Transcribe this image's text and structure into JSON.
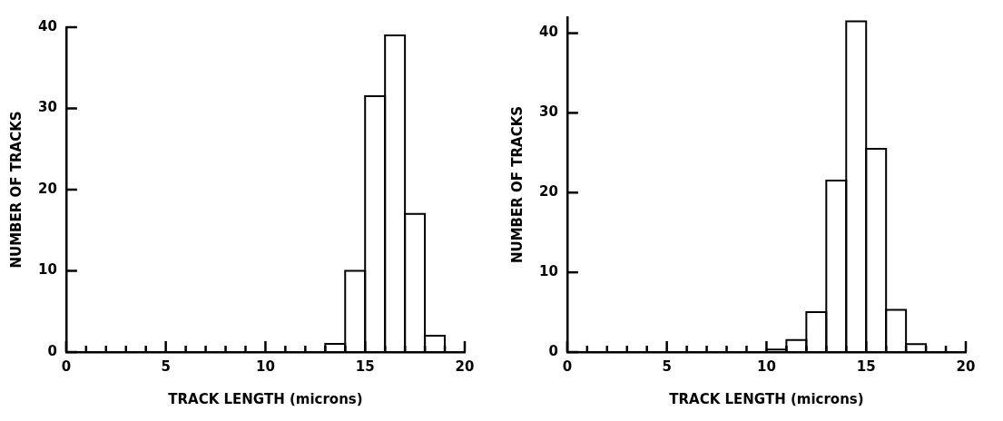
{
  "chart_data": [
    {
      "type": "histogram",
      "xlabel": "TRACK LENGTH (microns)",
      "ylabel": "NUMBER OF TRACKS",
      "bins": [
        13,
        14,
        15,
        16,
        17,
        18,
        19
      ],
      "values": [
        1,
        10,
        31.5,
        39,
        17,
        2
      ],
      "color": "#000000",
      "xlim": [
        0,
        20
      ],
      "ylim": [
        0,
        40
      ],
      "xticks": [
        0,
        {
          "value": 1,
          "label": null
        },
        {
          "value": 2,
          "label": null
        },
        {
          "value": 3,
          "label": null
        },
        {
          "value": 4,
          "label": null
        },
        5,
        {
          "value": 6,
          "label": null
        },
        {
          "value": 7,
          "label": null
        },
        {
          "value": 8,
          "label": null
        },
        {
          "value": 9,
          "label": null
        },
        10,
        {
          "value": 11,
          "label": null
        },
        {
          "value": 12,
          "label": null
        },
        {
          "value": 13,
          "label": null
        },
        {
          "value": 14,
          "label": null
        },
        15,
        {
          "value": 16,
          "label": null
        },
        {
          "value": 17,
          "label": null
        },
        {
          "value": 18,
          "label": null
        },
        {
          "value": 19,
          "label": null
        },
        20
      ],
      "yticks": [
        0,
        10,
        20,
        30,
        40
      ],
      "grid": false,
      "legend": false
    },
    {
      "type": "histogram",
      "xlabel": "TRACK LENGTH (microns)",
      "ylabel": "NUMBER OF TRACKS",
      "bins": [
        10,
        11,
        12,
        13,
        14,
        15,
        16,
        17,
        18
      ],
      "values": [
        0.3,
        1.5,
        5,
        21.5,
        41.5,
        25.5,
        5.3,
        1
      ],
      "color": "#000000",
      "xlim": [
        0,
        20
      ],
      "ylim": [
        0,
        42
      ],
      "xticks": [
        0,
        {
          "value": 1,
          "label": null
        },
        {
          "value": 2,
          "label": null
        },
        {
          "value": 3,
          "label": null
        },
        {
          "value": 4,
          "label": null
        },
        5,
        {
          "value": 6,
          "label": null
        },
        {
          "value": 7,
          "label": null
        },
        {
          "value": 8,
          "label": null
        },
        {
          "value": 9,
          "label": null
        },
        10,
        {
          "value": 11,
          "label": null
        },
        {
          "value": 12,
          "label": null
        },
        {
          "value": 13,
          "label": null
        },
        {
          "value": 14,
          "label": null
        },
        15,
        {
          "value": 16,
          "label": null
        },
        {
          "value": 17,
          "label": null
        },
        {
          "value": 18,
          "label": null
        },
        {
          "value": 19,
          "label": null
        },
        20
      ],
      "yticks": [
        0,
        10,
        20,
        30,
        40
      ],
      "grid": false,
      "legend": false
    }
  ]
}
